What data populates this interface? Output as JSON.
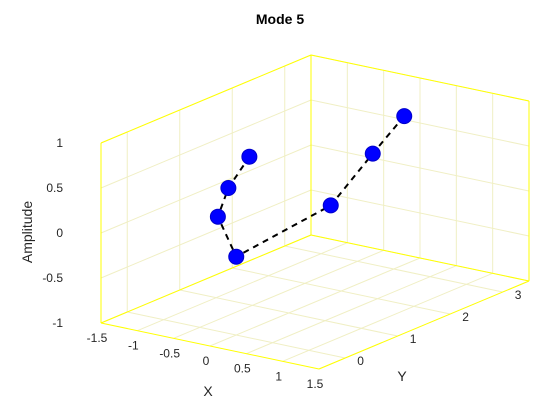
{
  "chart_data": {
    "type": "line3d",
    "title": "Mode 5",
    "xlabel": "X",
    "ylabel": "Y",
    "zlabel": "Amplitude",
    "xlim": [
      -1.5,
      1.5
    ],
    "ylim": [
      -0.5,
      3.5
    ],
    "zlim": [
      -1,
      1
    ],
    "x_ticks": [
      -1.5,
      -1,
      -0.5,
      0,
      0.5,
      1,
      1.5
    ],
    "x_tick_labels": [
      "-1.5",
      "-1",
      "-0.5",
      "0",
      "0.5",
      "1",
      "1.5"
    ],
    "y_ticks": [
      0,
      1,
      2,
      3
    ],
    "y_tick_labels": [
      "0",
      "1",
      "2",
      "3"
    ],
    "z_ticks": [
      -1,
      -0.5,
      0,
      0.5,
      1
    ],
    "z_tick_labels": [
      "-1",
      "-0.5",
      "0",
      "0.5",
      "1"
    ],
    "grid": true,
    "colors": {
      "grid": "#f0efc4",
      "axis": "#ffff00",
      "marker": "#0000ff",
      "line": "#000000"
    },
    "series": [
      {
        "line_style": "dashed",
        "marker": "circle",
        "points": [
          {
            "x": 0,
            "y": 3.2,
            "z": 0.65
          },
          {
            "x": 0,
            "y": 2.6,
            "z": 0.38
          },
          {
            "x": 0,
            "y": 1.8,
            "z": 0.0
          },
          {
            "x": 0,
            "y": 0.0,
            "z": -0.13
          },
          {
            "x": 0,
            "y": -0.35,
            "z": 0.4
          },
          {
            "x": 0,
            "y": -0.15,
            "z": 0.67
          },
          {
            "x": 0,
            "y": 0.25,
            "z": 0.92
          }
        ]
      }
    ]
  }
}
